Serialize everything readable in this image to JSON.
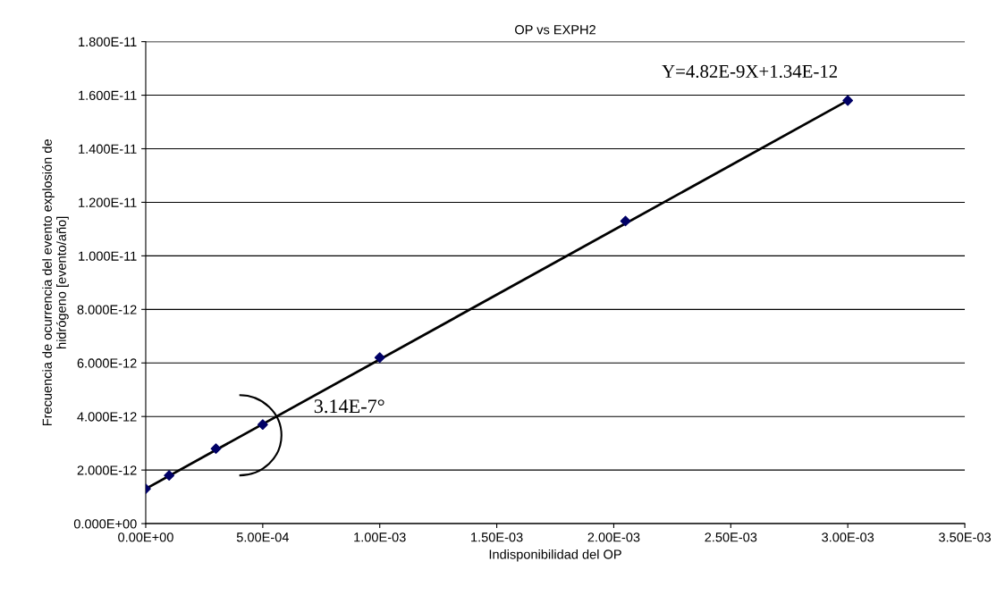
{
  "chart_data": {
    "type": "scatter",
    "title": "OP vs EXPH2",
    "xlabel": "Indisponibilidad del OP",
    "ylabel": "Frecuencia de ocurrencia del evento explosión de\nhidrógeno [evento/año]",
    "annotations": [
      "Y=4.82E-9X+1.34E-12",
      "3.14E-7°"
    ],
    "series": [
      {
        "type": "line",
        "color": "#000000",
        "marker": "none",
        "x": [
          0,
          0.003
        ],
        "values": [
          1.3e-12,
          1.58e-11
        ]
      },
      {
        "color": "#000066",
        "marker": "diamond",
        "x": [
          0,
          0.0001,
          0.0003,
          0.0005,
          0.001,
          0.00205,
          0.003
        ],
        "values": [
          1.3e-12,
          1.8e-12,
          2.8e-12,
          3.7e-12,
          6.2e-12,
          1.13e-11,
          1.58e-11
        ]
      }
    ],
    "xlim": [
      0,
      0.0035
    ],
    "xticks": [
      {
        "value": 0,
        "label": "0.00E+00"
      },
      {
        "value": 0.0005,
        "label": "5.00E-04"
      },
      {
        "value": 0.001,
        "label": "1.00E-03"
      },
      {
        "value": 0.0015,
        "label": "1.50E-03"
      },
      {
        "value": 0.002,
        "label": "2.00E-03"
      },
      {
        "value": 0.0025,
        "label": "2.50E-03"
      },
      {
        "value": 0.003,
        "label": "3.00E-03"
      },
      {
        "value": 0.0035,
        "label": "3.50E-03"
      }
    ],
    "ylim": [
      0,
      1.8e-11
    ],
    "yticks": [
      {
        "value": 0,
        "label": "0.000E+00"
      },
      {
        "value": 2e-12,
        "label": "2.000E-12"
      },
      {
        "value": 4e-12,
        "label": "4.000E-12"
      },
      {
        "value": 6e-12,
        "label": "6.000E-12"
      },
      {
        "value": 8e-12,
        "label": "8.000E-12"
      },
      {
        "value": 1e-11,
        "label": "1.000E-11"
      },
      {
        "value": 1.2e-11,
        "label": "1.200E-11"
      },
      {
        "value": 1.4e-11,
        "label": "1.400E-11"
      },
      {
        "value": 1.6e-11,
        "label": "1.600E-11"
      },
      {
        "value": 1.8e-11,
        "label": "1.800E-11"
      }
    ],
    "grid": "y"
  }
}
